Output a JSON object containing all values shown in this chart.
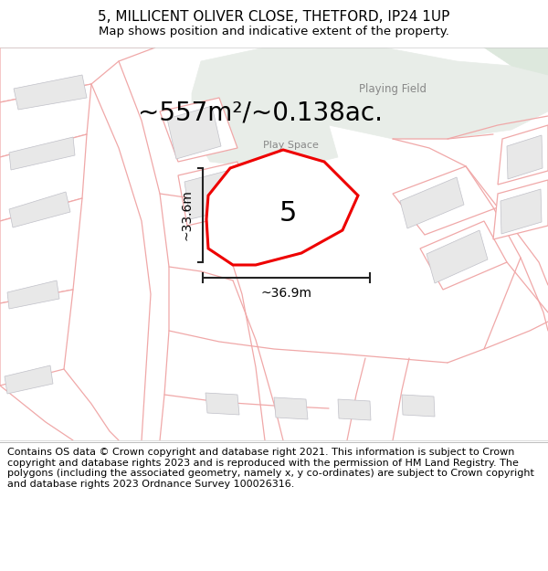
{
  "title": "5, MILLICENT OLIVER CLOSE, THETFORD, IP24 1UP",
  "subtitle": "Map shows position and indicative extent of the property.",
  "footer": "Contains OS data © Crown copyright and database right 2021. This information is subject to Crown copyright and database rights 2023 and is reproduced with the permission of HM Land Registry. The polygons (including the associated geometry, namely x, y co-ordinates) are subject to Crown copyright and database rights 2023 Ordnance Survey 100026316.",
  "area_text": "~557m²/~0.138ac.",
  "label_number": "5",
  "dim_horizontal": "~36.9m",
  "dim_vertical": "~33.6m",
  "playing_field_label": "Playing Field",
  "play_space_label": "Play Space",
  "map_bg": "#ffffff",
  "green_area_color": "#e8ede8",
  "green_area_color2": "#dde8dd",
  "building_color": "#e8e8e8",
  "building_outline": "#c0c0c8",
  "plot_outline_color": "#ee0000",
  "plot_fill_color": "#ffffff",
  "bg_line_color": "#f0a8a8",
  "dim_line_color": "#222222",
  "title_fontsize": 11,
  "subtitle_fontsize": 9.5,
  "footer_fontsize": 8.0,
  "area_fontsize": 20,
  "dim_fontsize": 10,
  "number_fontsize": 22,
  "label_fontsize": 8
}
